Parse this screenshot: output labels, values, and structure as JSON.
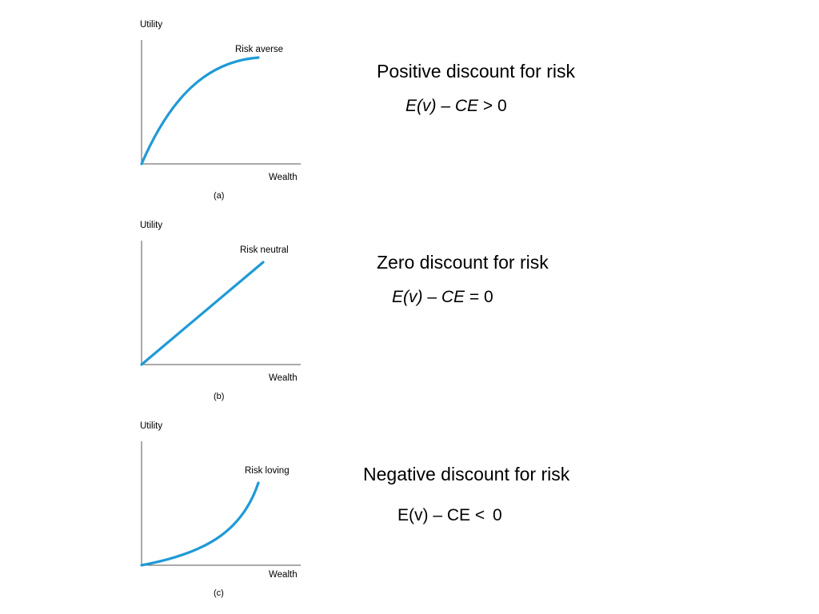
{
  "panels": [
    {
      "id": "a",
      "y_label": "Utility",
      "x_label": "Wealth",
      "curve_label": "Risk averse",
      "caption": "(a)",
      "curve_shape": "concave",
      "heading": "Positive discount for risk",
      "formula": {
        "lhs": "E(v)",
        "dash": "–",
        "ce": "CE",
        "op": ">",
        "rhs": "0",
        "italic": true
      }
    },
    {
      "id": "b",
      "y_label": "Utility",
      "x_label": "Wealth",
      "curve_label": "Risk neutral",
      "caption": "(b)",
      "curve_shape": "linear",
      "heading": "Zero discount for risk",
      "formula": {
        "lhs": "E(v)",
        "dash": "–",
        "ce": "CE",
        "op": "=",
        "rhs": "0",
        "italic": true
      }
    },
    {
      "id": "c",
      "y_label": "Utility",
      "x_label": "Wealth",
      "curve_label": "Risk loving",
      "caption": "(c)",
      "curve_shape": "convex",
      "heading": "Negative discount for risk",
      "formula": {
        "lhs": "E(v)",
        "dash": "–",
        "ce": "CE",
        "op": "<",
        "rhs": "0",
        "italic": false
      }
    }
  ],
  "colors": {
    "curve": "#1f9ad6",
    "axis": "#555555",
    "text": "#000000"
  }
}
